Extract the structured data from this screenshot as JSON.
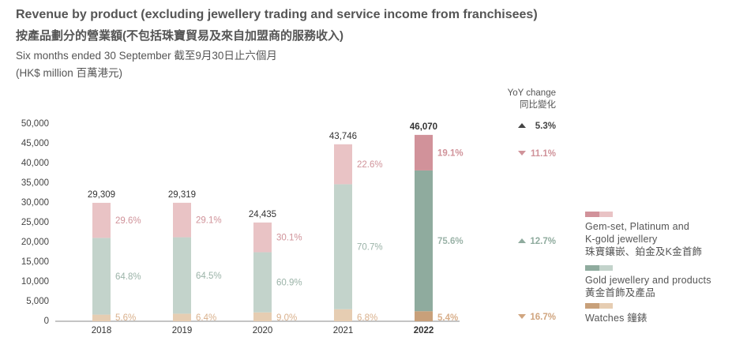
{
  "header": {
    "title": "Revenue by product (excluding jewellery trading and service income from franchisees)",
    "title_zh": "按產品劃分的營業額(不包括珠寶貿易及來自加盟商的服務收入)",
    "subtitle": "Six months ended 30 September 截至9月30日止六個月",
    "unit": "(HK$ million 百萬港元)"
  },
  "chart_data": {
    "type": "bar",
    "stacked": true,
    "categories": [
      "2018",
      "2019",
      "2020",
      "2021",
      "2022"
    ],
    "totals": [
      "29,309",
      "29,319",
      "24,435",
      "43,746",
      "46,070"
    ],
    "total_values": [
      29309,
      29319,
      24435,
      43746,
      46070
    ],
    "highlight_category": "2022",
    "ylim": [
      0,
      50000
    ],
    "yticks": [
      "50,000",
      "45,000",
      "40,000",
      "35,000",
      "30,000",
      "25,000",
      "20,000",
      "15,000",
      "10,000",
      "5,000",
      "0"
    ],
    "ytick_values": [
      50000,
      45000,
      40000,
      35000,
      30000,
      25000,
      20000,
      15000,
      10000,
      5000,
      0
    ],
    "series": [
      {
        "name": "Watches 鐘錶",
        "values_pct": [
          5.6,
          6.4,
          9.0,
          6.8,
          5.4
        ],
        "labels": [
          "5.6%",
          "6.4%",
          "9.0%",
          "6.8%",
          "5.4%"
        ],
        "color": "#e6cdb2",
        "color_highlight": "#c8a07a"
      },
      {
        "name": "Gold jewellery and products 黃金首飾及產品",
        "values_pct": [
          64.8,
          64.5,
          60.9,
          70.7,
          75.6
        ],
        "labels": [
          "64.8%",
          "64.5%",
          "60.9%",
          "70.7%",
          "75.6%"
        ],
        "color": "#c3d3cb",
        "color_highlight": "#8fab9e"
      },
      {
        "name": "Gem-set, Platinum and K-gold jewellery 珠寶鑲嵌、鉑金及K金首飾",
        "values_pct": [
          29.6,
          29.1,
          30.1,
          22.6,
          19.1
        ],
        "labels": [
          "29.6%",
          "29.1%",
          "30.1%",
          "22.6%",
          "19.1%"
        ],
        "color": "#e9c3c5",
        "color_highlight": "#d1929a"
      }
    ],
    "text_colors": {
      "gem": "#d0939a",
      "gold": "#9bb3a8",
      "watch": "#d9b08c"
    },
    "grid": false,
    "legend_position": "right"
  },
  "yoy": {
    "title": "YoY change",
    "title_zh": "同比變化",
    "items": [
      {
        "label": "5.3%",
        "direction": "up",
        "color": "#444444"
      },
      {
        "label": "11.1%",
        "direction": "down",
        "color": "#d0939a"
      },
      {
        "label": "12.7%",
        "direction": "up",
        "color": "#8fab9e"
      },
      {
        "label": "16.7%",
        "direction": "down",
        "color": "#d0a57f"
      }
    ]
  },
  "legend": [
    {
      "label": "Gem-set, Platinum and",
      "label2": "K-gold jewellery",
      "label_zh": "珠寶鑲嵌、鉑金及K金首飾"
    },
    {
      "label": "Gold jewellery and products",
      "label_zh": "黃金首飾及產品"
    },
    {
      "label": "Watches 鐘錶"
    }
  ]
}
